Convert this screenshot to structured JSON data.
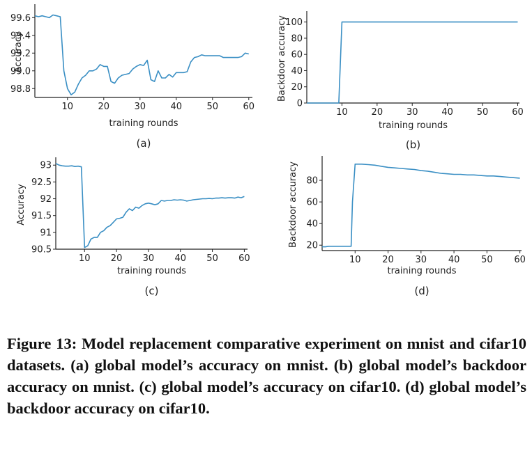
{
  "chart_data": [
    {
      "type": "line",
      "panel_label": "(a)",
      "xlabel": "training rounds",
      "ylabel": "Accuracy",
      "xlim": [
        1,
        61
      ],
      "ylim": [
        98.7,
        99.72
      ],
      "xticks": [
        10,
        20,
        30,
        40,
        50,
        60
      ],
      "yticks": [
        98.8,
        99.0,
        99.2,
        99.4,
        99.6
      ],
      "ytick_labels": [
        "98.8",
        "99.0",
        "99.2",
        "99.4",
        "99.6"
      ],
      "color": "#3a8fc4",
      "series": [
        {
          "x": [
            1,
            2,
            3,
            4,
            5,
            6,
            7,
            8,
            9,
            10,
            11,
            12,
            13,
            14,
            15,
            16,
            17,
            18,
            19,
            20,
            21,
            22,
            23,
            24,
            25,
            26,
            27,
            28,
            29,
            30,
            31,
            32,
            33,
            34,
            35,
            36,
            37,
            38,
            39,
            40,
            41,
            42,
            43,
            44,
            45,
            46,
            47,
            48,
            49,
            50,
            51,
            52,
            53,
            54,
            55,
            56,
            57,
            58,
            59,
            60
          ],
          "y": [
            99.62,
            99.61,
            99.62,
            99.61,
            99.6,
            99.63,
            99.62,
            99.61,
            99.0,
            98.8,
            98.73,
            98.76,
            98.85,
            98.92,
            98.95,
            99.0,
            99.0,
            99.02,
            99.07,
            99.05,
            99.05,
            98.88,
            98.86,
            98.92,
            98.95,
            98.96,
            98.97,
            99.02,
            99.05,
            99.07,
            99.06,
            99.12,
            98.9,
            98.88,
            99.0,
            98.92,
            98.92,
            98.96,
            98.93,
            98.98,
            98.98,
            98.98,
            98.99,
            99.1,
            99.15,
            99.16,
            99.18,
            99.17,
            99.17,
            99.17,
            99.17,
            99.17,
            99.15,
            99.15,
            99.15,
            99.15,
            99.15,
            99.16,
            99.2,
            99.19
          ]
        }
      ]
    },
    {
      "type": "line",
      "panel_label": "(b)",
      "xlabel": "training rounds",
      "ylabel": "Backdoor accuracy",
      "xlim": [
        0,
        60.5
      ],
      "ylim": [
        0,
        110
      ],
      "xticks": [
        10,
        20,
        30,
        40,
        50,
        60
      ],
      "yticks": [
        0,
        20,
        40,
        60,
        80,
        100
      ],
      "ytick_labels": [
        "0",
        "20",
        "40",
        "60",
        "80",
        "100"
      ],
      "color": "#3a8fc4",
      "series": [
        {
          "x": [
            0,
            8.9,
            9.1,
            10,
            60
          ],
          "y": [
            0,
            0,
            0,
            100,
            100
          ]
        }
      ]
    },
    {
      "type": "line",
      "panel_label": "(c)",
      "xlabel": "training rounds",
      "ylabel": "Accuracy",
      "xlim": [
        1,
        61
      ],
      "ylim": [
        90.5,
        93.15
      ],
      "xticks": [
        10,
        20,
        30,
        40,
        50,
        60
      ],
      "yticks": [
        90.5,
        91,
        91.5,
        92,
        92.5,
        93
      ],
      "ytick_labels": [
        "90.5",
        "91",
        "91.5",
        "92",
        "92.5",
        "93"
      ],
      "color": "#3a8fc4",
      "series": [
        {
          "x": [
            1,
            2,
            3,
            4,
            5,
            6,
            7,
            8,
            9,
            10,
            11,
            12,
            13,
            14,
            15,
            16,
            17,
            18,
            19,
            20,
            21,
            22,
            23,
            24,
            25,
            26,
            27,
            28,
            29,
            30,
            31,
            32,
            33,
            34,
            35,
            36,
            37,
            38,
            39,
            40,
            41,
            42,
            43,
            44,
            45,
            46,
            47,
            48,
            49,
            50,
            51,
            52,
            53,
            54,
            55,
            56,
            57,
            58,
            59,
            60
          ],
          "y": [
            93.05,
            93.0,
            92.98,
            92.97,
            92.97,
            92.98,
            92.96,
            92.97,
            92.95,
            90.55,
            90.6,
            90.8,
            90.85,
            90.85,
            91.0,
            91.05,
            91.15,
            91.2,
            91.3,
            91.4,
            91.42,
            91.45,
            91.6,
            91.7,
            91.65,
            91.75,
            91.72,
            91.8,
            91.85,
            91.87,
            91.85,
            91.82,
            91.85,
            91.95,
            91.93,
            91.95,
            91.95,
            91.97,
            91.96,
            91.97,
            91.96,
            91.93,
            91.95,
            91.97,
            91.98,
            91.99,
            92.0,
            92.0,
            92.01,
            92.0,
            92.02,
            92.02,
            92.03,
            92.02,
            92.03,
            92.03,
            92.02,
            92.05,
            92.03,
            92.07
          ]
        }
      ]
    },
    {
      "type": "line",
      "panel_label": "(d)",
      "xlabel": "training rounds",
      "ylabel": "Backdoor accuracy",
      "xlim": [
        0,
        60.5
      ],
      "ylim": [
        15,
        100
      ],
      "xticks": [
        10,
        20,
        30,
        40,
        50,
        60
      ],
      "yticks": [
        20,
        40,
        60,
        80
      ],
      "ytick_labels": [
        "20",
        "40",
        "60",
        "80"
      ],
      "color": "#3a8fc4",
      "series": [
        {
          "x": [
            0,
            1,
            2,
            3,
            4,
            5,
            6,
            7,
            8,
            8.8,
            9.2,
            10,
            12,
            14,
            16,
            18,
            20,
            22,
            24,
            26,
            28,
            30,
            32,
            34,
            36,
            38,
            40,
            42,
            44,
            46,
            48,
            50,
            52,
            54,
            56,
            58,
            60
          ],
          "y": [
            18.5,
            18.5,
            19,
            19,
            19,
            19,
            19,
            19,
            19,
            19,
            60,
            95,
            95,
            94.5,
            94,
            93,
            92,
            91.5,
            91,
            90.5,
            90,
            89,
            88.5,
            87.5,
            86.5,
            86,
            85.5,
            85.5,
            85,
            85,
            84.5,
            84,
            84,
            83.5,
            83,
            82.5,
            82
          ]
        }
      ]
    }
  ],
  "caption": "Figure 13: Model replacement comparative experiment on mnist and cifar10 datasets. (a) global model’s accuracy on mnist. (b) global model’s backdoor accuracy on mnist. (c) global model’s accuracy on cifar10. (d) global model’s backdoor accuracy on cifar10."
}
